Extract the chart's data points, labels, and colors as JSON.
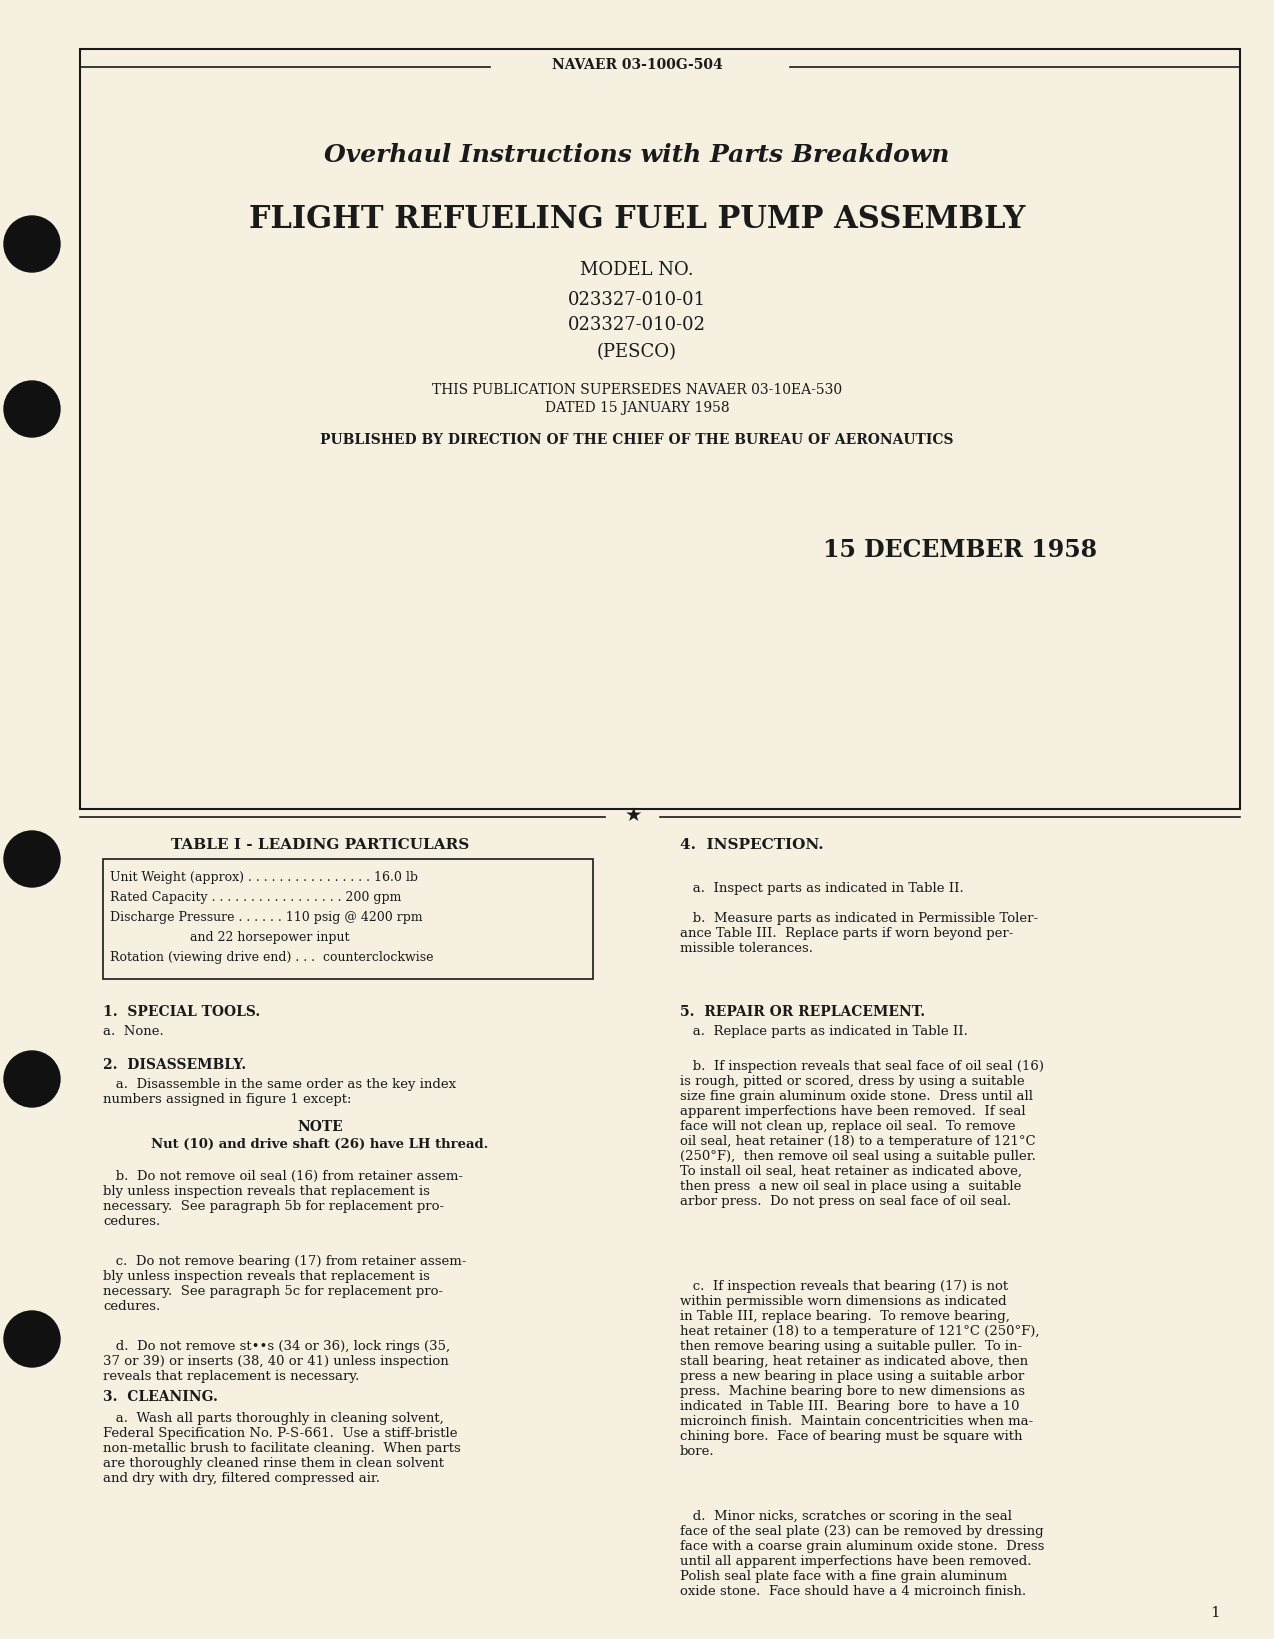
{
  "bg_color": "#f5f0e0",
  "page_bg": "#f5f0e0",
  "text_color": "#1a1a1a",
  "header_label": "NAVAER 03-100G-504",
  "title_line1": "Overhaul Instructions with Parts Breakdown",
  "title_line2": "FLIGHT REFUELING FUEL PUMP ASSEMBLY",
  "model_label": "MODEL NO.",
  "model1": "023327-010-01",
  "model2": "023327-010-02",
  "pesco": "(PESCO)",
  "supersedes_line1": "THIS PUBLICATION SUPERSEDES NAVAER 03-10EA-530",
  "supersedes_line2": "DATED 15 JANUARY 1958",
  "published_line": "PUBLISHED BY DIRECTION OF THE CHIEF OF THE BUREAU OF AERONAUTICS",
  "date": "15 DECEMBER 1958",
  "table_title": "TABLE I - LEADING PARTICULARS",
  "table_lines": [
    "Unit Weight (approx) . . . . . . . . . . . . . . . . 16.0 lb",
    "Rated Capacity . . . . . . . . . . . . . . . . . 200 gpm",
    "Discharge Pressure . . . . . . 110 psig @ 4200 rpm",
    "                    and 22 horsepower input",
    "Rotation (viewing drive end) . . .  counterclockwise"
  ],
  "section1_title": "1.  SPECIAL TOOLS.",
  "section1_a": "a.  None.",
  "section2_title": "2.  DISASSEMBLY.",
  "section2_a": "   a.  Disassemble in the same order as the key index\nnumbers assigned in figure 1 except:",
  "note_title": "NOTE",
  "note_text": "Nut (10) and drive shaft (26) have LH thread.",
  "section2_b": "   b.  Do not remove oil seal (16) from retainer assem-\nbly unless inspection reveals that replacement is\nnecessary.  See paragraph 5b for replacement pro-\ncedures.",
  "section2_c": "   c.  Do not remove bearing (17) from retainer assem-\nbly unless inspection reveals that replacement is\nnecessary.  See paragraph 5c for replacement pro-\ncedures.",
  "section2_d": "   d.  Do not remove st••s (34 or 36), lock rings (35,\n37 or 39) or inserts (38, 40 or 41) unless inspection\nreveals that replacement is necessary.",
  "section3_title": "3.  CLEANING.",
  "section3_a": "   a.  Wash all parts thoroughly in cleaning solvent,\nFederal Specification No. P-S-661.  Use a stiff-bristle\nnon-metallic brush to facilitate cleaning.  When parts\nare thoroughly cleaned rinse them in clean solvent\nand dry with dry, filtered compressed air.",
  "section4_title": "4.  INSPECTION.",
  "section4_a": "   a.  Inspect parts as indicated in Table II.",
  "section4_b": "   b.  Measure parts as indicated in Permissible Toler-\nance Table III.  Replace parts if worn beyond per-\nmissible tolerances.",
  "section5_title": "5.  REPAIR OR REPLACEMENT.",
  "section5_a": "   a.  Replace parts as indicated in Table II.",
  "section5_b": "   b.  If inspection reveals that seal face of oil seal (16)\nis rough, pitted or scored, dress by using a suitable\nsize fine grain aluminum oxide stone.  Dress until all\napparent imperfections have been removed.  If seal\nface will not clean up, replace oil seal.  To remove\noil seal, heat retainer (18) to a temperature of 121°C\n(250°F),  then remove oil seal using a suitable puller.\nTo install oil seal, heat retainer as indicated above,\nthen press  a new oil seal in place using a  suitable\narbor press.  Do not press on seal face of oil seal.",
  "section5_c": "   c.  If inspection reveals that bearing (17) is not\nwithin permissible worn dimensions as indicated\nin Table III, replace bearing.  To remove bearing,\nheat retainer (18) to a temperature of 121°C (250°F),\nthen remove bearing using a suitable puller.  To in-\nstall bearing, heat retainer as indicated above, then\npress a new bearing in place using a suitable arbor\npress.  Machine bearing bore to new dimensions as\nindicated  in Table III.  Bearing  bore  to have a 10\nmicroinch finish.  Maintain concentricities when ma-\nchining bore.  Face of bearing must be square with\nbore.",
  "section5_d": "   d.  Minor nicks, scratches or scoring in the seal\nface of the seal plate (23) can be removed by dressing\nface with a coarse grain aluminum oxide stone.  Dress\nuntil all apparent imperfections have been removed.\nPolish seal plate face with a fine grain aluminum\noxide stone.  Face should have a 4 microinch finish.",
  "page_number": "1"
}
